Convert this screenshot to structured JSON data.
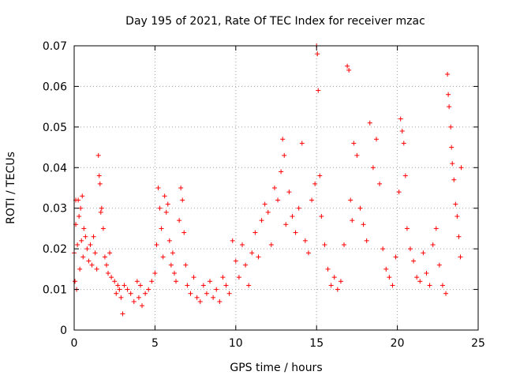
{
  "chart_data": {
    "type": "scatter",
    "title": "Day 195 of 2021, Rate Of TEC Index for receiver mzac",
    "xlabel": "GPS time / hours",
    "ylabel": "ROTI / TECUs",
    "xlim": [
      0,
      25
    ],
    "ylim": [
      0,
      0.07
    ],
    "xticks": [
      0,
      5,
      10,
      15,
      20,
      25
    ],
    "yticks": [
      0,
      0.01,
      0.02,
      0.03,
      0.04,
      0.05,
      0.06,
      0.07
    ],
    "xtick_labels": [
      "0",
      "5",
      "10",
      "15",
      "20",
      "25"
    ],
    "ytick_labels": [
      "0",
      "0.01",
      "0.02",
      "0.03",
      "0.04",
      "0.05",
      "0.06",
      "0.07"
    ],
    "grid": true,
    "marker": "+",
    "series_color": "#ff0000",
    "series": [
      {
        "name": "ROTI",
        "points": [
          [
            0.0,
            0.019
          ],
          [
            0.05,
            0.012
          ],
          [
            0.1,
            0.026
          ],
          [
            0.1,
            0.032
          ],
          [
            0.15,
            0.01
          ],
          [
            0.2,
            0.021
          ],
          [
            0.25,
            0.032
          ],
          [
            0.3,
            0.028
          ],
          [
            0.35,
            0.015
          ],
          [
            0.4,
            0.03
          ],
          [
            0.45,
            0.022
          ],
          [
            0.5,
            0.033
          ],
          [
            0.55,
            0.018
          ],
          [
            0.6,
            0.025
          ],
          [
            0.7,
            0.023
          ],
          [
            0.8,
            0.02
          ],
          [
            0.9,
            0.017
          ],
          [
            1.0,
            0.021
          ],
          [
            1.1,
            0.016
          ],
          [
            1.2,
            0.023
          ],
          [
            1.3,
            0.019
          ],
          [
            1.4,
            0.015
          ],
          [
            1.5,
            0.043
          ],
          [
            1.55,
            0.038
          ],
          [
            1.6,
            0.036
          ],
          [
            1.65,
            0.029
          ],
          [
            1.7,
            0.03
          ],
          [
            1.8,
            0.025
          ],
          [
            1.9,
            0.018
          ],
          [
            2.0,
            0.016
          ],
          [
            2.1,
            0.014
          ],
          [
            2.2,
            0.019
          ],
          [
            2.3,
            0.013
          ],
          [
            2.5,
            0.012
          ],
          [
            2.6,
            0.009
          ],
          [
            2.7,
            0.011
          ],
          [
            2.8,
            0.01
          ],
          [
            2.9,
            0.008
          ],
          [
            3.0,
            0.004
          ],
          [
            3.1,
            0.011
          ],
          [
            3.3,
            0.01
          ],
          [
            3.5,
            0.009
          ],
          [
            3.7,
            0.007
          ],
          [
            3.9,
            0.012
          ],
          [
            4.0,
            0.008
          ],
          [
            4.1,
            0.011
          ],
          [
            4.2,
            0.006
          ],
          [
            4.4,
            0.009
          ],
          [
            4.6,
            0.01
          ],
          [
            4.8,
            0.012
          ],
          [
            5.0,
            0.014
          ],
          [
            5.1,
            0.021
          ],
          [
            5.2,
            0.035
          ],
          [
            5.3,
            0.03
          ],
          [
            5.4,
            0.025
          ],
          [
            5.5,
            0.018
          ],
          [
            5.6,
            0.033
          ],
          [
            5.7,
            0.029
          ],
          [
            5.8,
            0.031
          ],
          [
            5.9,
            0.022
          ],
          [
            6.0,
            0.016
          ],
          [
            6.1,
            0.019
          ],
          [
            6.2,
            0.014
          ],
          [
            6.3,
            0.012
          ],
          [
            6.5,
            0.027
          ],
          [
            6.6,
            0.035
          ],
          [
            6.7,
            0.032
          ],
          [
            6.8,
            0.024
          ],
          [
            6.9,
            0.016
          ],
          [
            7.0,
            0.011
          ],
          [
            7.2,
            0.009
          ],
          [
            7.4,
            0.013
          ],
          [
            7.6,
            0.008
          ],
          [
            7.8,
            0.007
          ],
          [
            8.0,
            0.011
          ],
          [
            8.2,
            0.009
          ],
          [
            8.4,
            0.012
          ],
          [
            8.6,
            0.008
          ],
          [
            8.8,
            0.01
          ],
          [
            9.0,
            0.007
          ],
          [
            9.2,
            0.013
          ],
          [
            9.4,
            0.011
          ],
          [
            9.6,
            0.009
          ],
          [
            9.8,
            0.022
          ],
          [
            10.0,
            0.017
          ],
          [
            10.2,
            0.013
          ],
          [
            10.4,
            0.021
          ],
          [
            10.6,
            0.016
          ],
          [
            10.8,
            0.011
          ],
          [
            11.0,
            0.019
          ],
          [
            11.2,
            0.024
          ],
          [
            11.4,
            0.018
          ],
          [
            11.6,
            0.027
          ],
          [
            11.8,
            0.031
          ],
          [
            12.0,
            0.029
          ],
          [
            12.2,
            0.021
          ],
          [
            12.4,
            0.035
          ],
          [
            12.6,
            0.032
          ],
          [
            12.8,
            0.039
          ],
          [
            12.9,
            0.047
          ],
          [
            13.0,
            0.043
          ],
          [
            13.1,
            0.026
          ],
          [
            13.3,
            0.034
          ],
          [
            13.5,
            0.028
          ],
          [
            13.7,
            0.024
          ],
          [
            13.9,
            0.03
          ],
          [
            14.1,
            0.046
          ],
          [
            14.3,
            0.022
          ],
          [
            14.5,
            0.019
          ],
          [
            14.7,
            0.032
          ],
          [
            14.9,
            0.036
          ],
          [
            15.0,
            0.07
          ],
          [
            15.05,
            0.068
          ],
          [
            15.1,
            0.059
          ],
          [
            15.2,
            0.038
          ],
          [
            15.3,
            0.028
          ],
          [
            15.5,
            0.021
          ],
          [
            15.7,
            0.015
          ],
          [
            15.9,
            0.011
          ],
          [
            16.1,
            0.013
          ],
          [
            16.3,
            0.01
          ],
          [
            16.5,
            0.012
          ],
          [
            16.7,
            0.021
          ],
          [
            16.9,
            0.065
          ],
          [
            17.0,
            0.064
          ],
          [
            17.1,
            0.032
          ],
          [
            17.2,
            0.027
          ],
          [
            17.3,
            0.046
          ],
          [
            17.5,
            0.043
          ],
          [
            17.7,
            0.03
          ],
          [
            17.9,
            0.026
          ],
          [
            18.1,
            0.022
          ],
          [
            18.3,
            0.051
          ],
          [
            18.5,
            0.04
          ],
          [
            18.7,
            0.047
          ],
          [
            18.9,
            0.036
          ],
          [
            19.1,
            0.02
          ],
          [
            19.3,
            0.015
          ],
          [
            19.5,
            0.013
          ],
          [
            19.7,
            0.011
          ],
          [
            19.9,
            0.018
          ],
          [
            20.1,
            0.034
          ],
          [
            20.2,
            0.052
          ],
          [
            20.3,
            0.049
          ],
          [
            20.4,
            0.046
          ],
          [
            20.5,
            0.038
          ],
          [
            20.6,
            0.025
          ],
          [
            20.8,
            0.02
          ],
          [
            21.0,
            0.017
          ],
          [
            21.2,
            0.013
          ],
          [
            21.4,
            0.012
          ],
          [
            21.6,
            0.019
          ],
          [
            21.8,
            0.014
          ],
          [
            22.0,
            0.011
          ],
          [
            22.2,
            0.021
          ],
          [
            22.4,
            0.025
          ],
          [
            22.6,
            0.016
          ],
          [
            22.8,
            0.011
          ],
          [
            23.0,
            0.009
          ],
          [
            23.1,
            0.063
          ],
          [
            23.15,
            0.058
          ],
          [
            23.2,
            0.055
          ],
          [
            23.3,
            0.05
          ],
          [
            23.35,
            0.045
          ],
          [
            23.4,
            0.041
          ],
          [
            23.5,
            0.037
          ],
          [
            23.6,
            0.031
          ],
          [
            23.7,
            0.028
          ],
          [
            23.8,
            0.023
          ],
          [
            23.9,
            0.018
          ],
          [
            23.95,
            0.04
          ]
        ]
      }
    ]
  }
}
